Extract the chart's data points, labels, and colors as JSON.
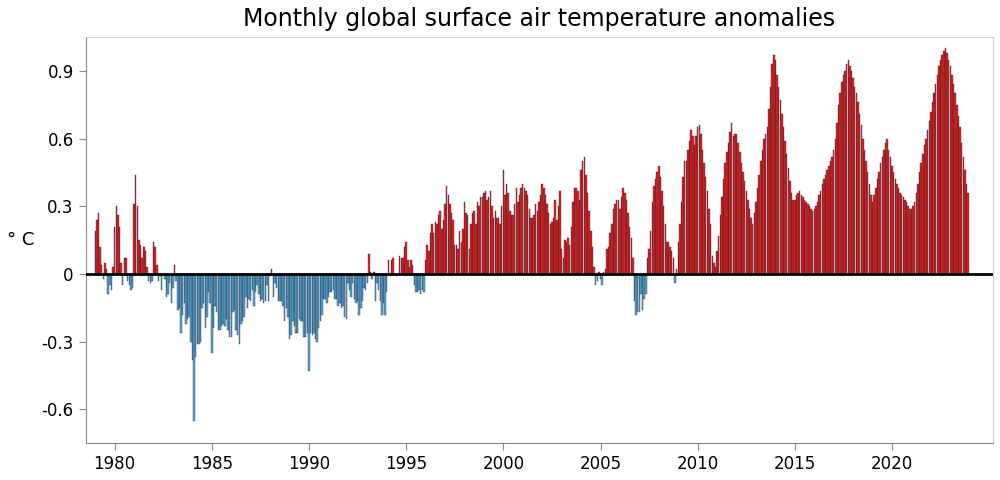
{
  "title": "Monthly global surface air temperature anomalies",
  "ylabel": "° C",
  "ylim": [
    -0.75,
    1.05
  ],
  "yticks": [
    -0.6,
    -0.3,
    0.0,
    0.3,
    0.6,
    0.9
  ],
  "xlim": [
    1978.5,
    2025.2
  ],
  "xticks": [
    1980,
    1985,
    1990,
    1995,
    2000,
    2005,
    2010,
    2015,
    2020
  ],
  "color_positive": "#e8251a",
  "color_negative": "#5aabcf",
  "bar_edge_color": "#1a1a3a",
  "background_color": "#ffffff",
  "title_fontsize": 17,
  "start_year": 1979,
  "start_month": 1,
  "values": [
    0.19,
    0.24,
    0.27,
    0.12,
    0.04,
    -0.02,
    0.05,
    0.02,
    -0.09,
    -0.05,
    -0.07,
    0.03,
    0.21,
    0.3,
    0.26,
    0.21,
    0.05,
    -0.05,
    0.07,
    0.07,
    -0.03,
    -0.05,
    -0.07,
    -0.06,
    0.31,
    0.44,
    0.3,
    0.15,
    0.13,
    0.07,
    0.12,
    0.1,
    0.03,
    -0.03,
    -0.04,
    -0.03,
    0.14,
    0.12,
    0.04,
    -0.03,
    -0.01,
    -0.07,
    0.0,
    -0.02,
    -0.1,
    -0.09,
    -0.04,
    -0.13,
    -0.06,
    0.04,
    -0.03,
    -0.16,
    -0.15,
    -0.26,
    -0.18,
    -0.13,
    -0.22,
    -0.2,
    -0.19,
    -0.3,
    -0.38,
    -0.65,
    -0.37,
    -0.31,
    -0.31,
    -0.3,
    -0.15,
    -0.13,
    -0.24,
    -0.19,
    -0.08,
    -0.13,
    -0.35,
    -0.24,
    -0.14,
    -0.17,
    -0.25,
    -0.25,
    -0.23,
    -0.22,
    -0.23,
    -0.2,
    -0.25,
    -0.28,
    -0.28,
    -0.17,
    -0.16,
    -0.25,
    -0.27,
    -0.31,
    -0.22,
    -0.21,
    -0.19,
    -0.1,
    -0.15,
    -0.11,
    -0.12,
    -0.07,
    -0.14,
    -0.08,
    -0.05,
    -0.09,
    -0.12,
    -0.11,
    -0.13,
    -0.12,
    -0.05,
    -0.12,
    -0.01,
    0.02,
    -0.1,
    -0.04,
    -0.06,
    -0.12,
    -0.12,
    -0.12,
    -0.14,
    -0.21,
    -0.15,
    -0.19,
    -0.29,
    -0.27,
    -0.21,
    -0.23,
    -0.26,
    -0.26,
    -0.2,
    -0.21,
    -0.21,
    -0.28,
    -0.28,
    -0.26,
    -0.43,
    -0.26,
    -0.27,
    -0.26,
    -0.29,
    -0.3,
    -0.24,
    -0.21,
    -0.18,
    -0.11,
    -0.11,
    -0.13,
    -0.1,
    -0.08,
    -0.08,
    -0.07,
    -0.11,
    -0.11,
    -0.14,
    -0.13,
    -0.15,
    -0.14,
    -0.19,
    -0.2,
    -0.04,
    -0.07,
    -0.1,
    -0.04,
    -0.11,
    -0.13,
    -0.12,
    -0.18,
    -0.15,
    -0.12,
    -0.06,
    -0.07,
    -0.04,
    0.09,
    0.01,
    -0.02,
    0.01,
    -0.12,
    -0.04,
    -0.07,
    -0.12,
    -0.18,
    -0.13,
    -0.18,
    -0.08,
    0.06,
    0.0,
    0.06,
    0.07,
    0.0,
    -0.01,
    0.0,
    0.08,
    0.07,
    0.07,
    0.12,
    0.14,
    0.06,
    0.03,
    0.06,
    0.04,
    -0.05,
    -0.08,
    -0.08,
    -0.07,
    -0.09,
    -0.07,
    -0.08,
    0.06,
    0.13,
    0.1,
    0.18,
    0.22,
    0.18,
    0.23,
    0.22,
    0.26,
    0.28,
    0.2,
    0.24,
    0.31,
    0.39,
    0.35,
    0.31,
    0.27,
    0.24,
    0.13,
    0.13,
    0.11,
    0.19,
    0.14,
    0.2,
    0.32,
    0.27,
    0.26,
    0.11,
    0.22,
    0.27,
    0.28,
    0.22,
    0.32,
    0.3,
    0.34,
    0.34,
    0.36,
    0.37,
    0.33,
    0.34,
    0.37,
    0.3,
    0.25,
    0.28,
    0.25,
    0.25,
    0.22,
    0.3,
    0.46,
    0.35,
    0.4,
    0.36,
    0.28,
    0.26,
    0.26,
    0.31,
    0.38,
    0.32,
    0.35,
    0.38,
    0.4,
    0.38,
    0.37,
    0.35,
    0.29,
    0.25,
    0.25,
    0.26,
    0.31,
    0.28,
    0.32,
    0.35,
    0.4,
    0.38,
    0.35,
    0.31,
    0.27,
    0.22,
    0.23,
    0.25,
    0.33,
    0.24,
    0.3,
    0.37,
    0.11,
    0.07,
    0.15,
    0.14,
    0.16,
    0.13,
    0.21,
    0.32,
    0.38,
    0.38,
    0.37,
    0.33,
    0.46,
    0.5,
    0.52,
    0.44,
    0.36,
    0.28,
    0.19,
    0.12,
    0.03,
    -0.05,
    -0.03,
    0.01,
    -0.02,
    -0.05,
    0.01,
    0.02,
    0.11,
    0.12,
    0.18,
    0.22,
    0.29,
    0.31,
    0.33,
    0.33,
    0.29,
    0.34,
    0.38,
    0.36,
    0.33,
    0.27,
    0.21,
    0.16,
    0.07,
    -0.12,
    -0.18,
    -0.17,
    -0.17,
    -0.09,
    -0.16,
    -0.11,
    -0.09,
    0.07,
    0.11,
    0.19,
    0.32,
    0.39,
    0.42,
    0.45,
    0.48,
    0.43,
    0.37,
    0.3,
    0.22,
    0.14,
    0.14,
    0.12,
    0.1,
    0.07,
    -0.04,
    0.02,
    0.14,
    0.22,
    0.32,
    0.43,
    0.5,
    0.5,
    0.55,
    0.59,
    0.64,
    0.61,
    0.57,
    0.61,
    0.65,
    0.66,
    0.62,
    0.55,
    0.49,
    0.43,
    0.37,
    0.29,
    0.22,
    0.08,
    0.05,
    0.03,
    0.1,
    0.17,
    0.26,
    0.34,
    0.42,
    0.49,
    0.54,
    0.58,
    0.63,
    0.67,
    0.61,
    0.62,
    0.62,
    0.58,
    0.54,
    0.49,
    0.45,
    0.41,
    0.37,
    0.33,
    0.29,
    0.25,
    0.22,
    0.27,
    0.32,
    0.38,
    0.44,
    0.5,
    0.55,
    0.6,
    0.62,
    0.65,
    0.73,
    0.83,
    0.93,
    0.97,
    0.95,
    0.88,
    0.83,
    0.77,
    0.71,
    0.65,
    0.59,
    0.53,
    0.47,
    0.41,
    0.36,
    0.33,
    0.33,
    0.35,
    0.36,
    0.37,
    0.35,
    0.34,
    0.33,
    0.32,
    0.31,
    0.3,
    0.29,
    0.28,
    0.29,
    0.3,
    0.32,
    0.35,
    0.37,
    0.4,
    0.42,
    0.44,
    0.46,
    0.48,
    0.5,
    0.52,
    0.55,
    0.6,
    0.67,
    0.75,
    0.8,
    0.85,
    0.88,
    0.9,
    0.93,
    0.95,
    0.92,
    0.9,
    0.87,
    0.83,
    0.8,
    0.76,
    0.71,
    0.66,
    0.6,
    0.55,
    0.5,
    0.45,
    0.4,
    0.35,
    0.32,
    0.35,
    0.38,
    0.42,
    0.45,
    0.49,
    0.52,
    0.55,
    0.58,
    0.6,
    0.55,
    0.52,
    0.48,
    0.45,
    0.42,
    0.4,
    0.38,
    0.36,
    0.35,
    0.34,
    0.33,
    0.32,
    0.3,
    0.29,
    0.29,
    0.3,
    0.32,
    0.36,
    0.4,
    0.45,
    0.49,
    0.53,
    0.57,
    0.6,
    0.64,
    0.68,
    0.72,
    0.76,
    0.8,
    0.84,
    0.88,
    0.92,
    0.95,
    0.97,
    0.99,
    1.0,
    0.98,
    0.95,
    0.92,
    0.88,
    0.84,
    0.8,
    0.75,
    0.7,
    0.65,
    0.58,
    0.52,
    0.46,
    0.4,
    0.36
  ]
}
